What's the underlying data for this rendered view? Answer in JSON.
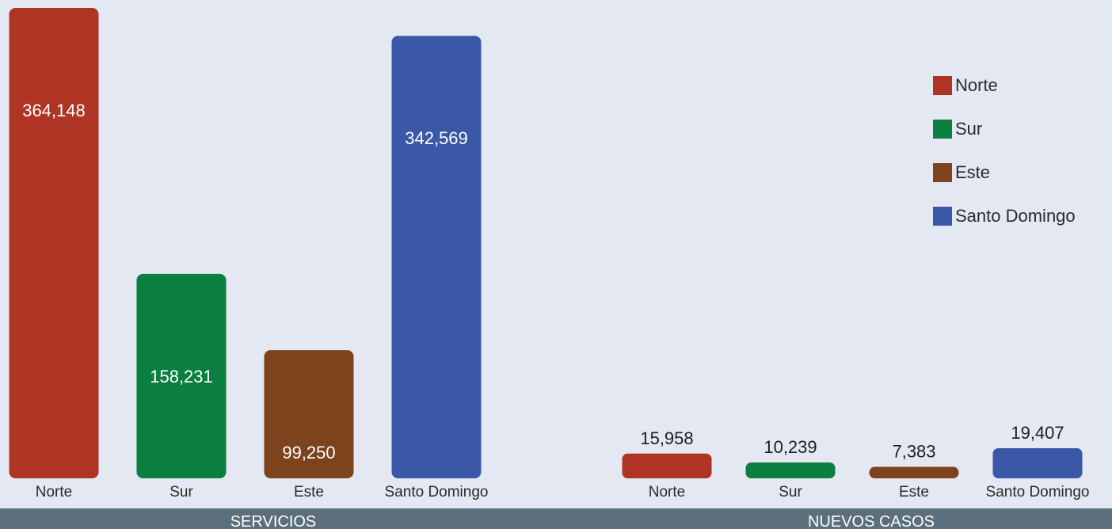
{
  "chart_data": [
    {
      "type": "bar",
      "title": "SERVICIOS",
      "categories": [
        "Norte",
        "Sur",
        "Este",
        "Santo Domingo"
      ],
      "values": [
        364148,
        158231,
        99250,
        342569
      ],
      "value_labels": [
        "364,148",
        "158,231",
        "99,250",
        "342,569"
      ],
      "colors": [
        "#b03423",
        "#0b7f40",
        "#7c431c",
        "#3a58a7"
      ],
      "ylim": [
        0,
        364148
      ],
      "grid": false,
      "data_labels": "inside-top"
    },
    {
      "type": "bar",
      "title": "NUEVOS CASOS",
      "categories": [
        "Norte",
        "Sur",
        "Este",
        "Santo Domingo"
      ],
      "values": [
        15958,
        10239,
        7383,
        19407
      ],
      "value_labels": [
        "15,958",
        "10,239",
        "7,383",
        "19,407"
      ],
      "colors": [
        "#b03423",
        "#0b7f40",
        "#7c431c",
        "#3a58a7"
      ],
      "grid": false,
      "data_labels": "above"
    }
  ],
  "legend": {
    "placement": "top-right",
    "items": [
      {
        "label": "Norte",
        "color": "#b03423"
      },
      {
        "label": "Sur",
        "color": "#0b7f40"
      },
      {
        "label": "Este",
        "color": "#7c431c"
      },
      {
        "label": "Santo Domingo",
        "color": "#3a58a7"
      }
    ]
  },
  "colors": {
    "background": "#e4e8f2",
    "section_bar": "#5b6f7c"
  }
}
